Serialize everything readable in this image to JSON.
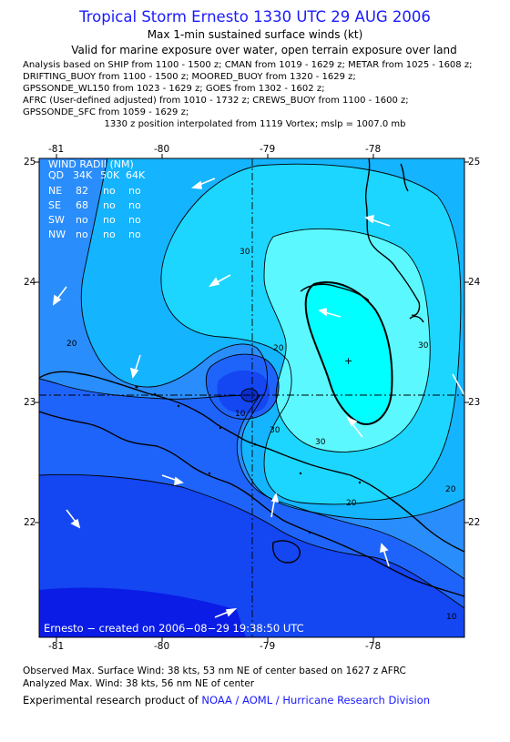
{
  "header": {
    "title": "Tropical Storm Ernesto 1330 UTC 29 AUG 2006",
    "subtitle": "Max 1-min sustained surface winds (kt)",
    "validity": "Valid for marine exposure over water, open terrain exposure over land"
  },
  "sources": [
    "Analysis based on  SHIP from 1100 - 1500 z;  CMAN from 1019 - 1629 z;  METAR from 1025 - 1608 z;",
    "DRIFTING_BUOY from 1100 - 1500 z;  MOORED_BUOY from 1320 - 1629 z;",
    "GPSSONDE_WL150 from 1023 - 1629 z;  GOES from 1302 - 1602 z;",
    "AFRC (User-defined adjusted) from 1010 - 1732 z;  CREWS_BUOY from 1100 - 1600 z;",
    "GPSSONDE_SFC from 1059 - 1629 z;"
  ],
  "position_note": "1330 z position interpolated from 1119 Vortex; mslp = 1007.0 mb",
  "axes": {
    "lon_labels": [
      "-81",
      "-80",
      "-79",
      "-78"
    ],
    "lat_labels": [
      "25",
      "24",
      "23",
      "22"
    ]
  },
  "wind_radii": {
    "title": "WIND RADII (NM)",
    "columns": [
      "QD",
      "34K",
      "50K",
      "64K"
    ],
    "rows": [
      {
        "quadrant": "NE",
        "r34": "82",
        "r50": "no",
        "r64": "no"
      },
      {
        "quadrant": "SE",
        "r34": "68",
        "r50": "no",
        "r64": "no"
      },
      {
        "quadrant": "SW",
        "r34": "no",
        "r50": "no",
        "r64": "no"
      },
      {
        "quadrant": "NW",
        "r34": "no",
        "r50": "no",
        "r64": "no"
      }
    ]
  },
  "contour_labels": [
    "30",
    "30",
    "30",
    "30",
    "20",
    "20",
    "20",
    "20",
    "10",
    "10"
  ],
  "credit": "Ernesto − created on 2006−08−29 19:38:50 UTC",
  "footer": {
    "observed": "Observed Max. Surface Wind: 38 kts, 53 nm NE of center based on 1627 z AFRC",
    "analyzed": "Analyzed Max. Wind: 38 kts, 56 nm NE of center",
    "product_prefix": "Experimental research product of ",
    "product_link": "NOAA / AOML / Hurricane Research Division"
  },
  "colors": {
    "title": "#1a1aff",
    "level_0": "#0a1ce6",
    "level_5": "#1446f2",
    "level_10": "#1f64fa",
    "level_15": "#2a8dfc",
    "level_20": "#14b4ff",
    "level_25": "#1cd6ff",
    "level_30": "#5cf8ff",
    "level_35": "#00ffff"
  }
}
